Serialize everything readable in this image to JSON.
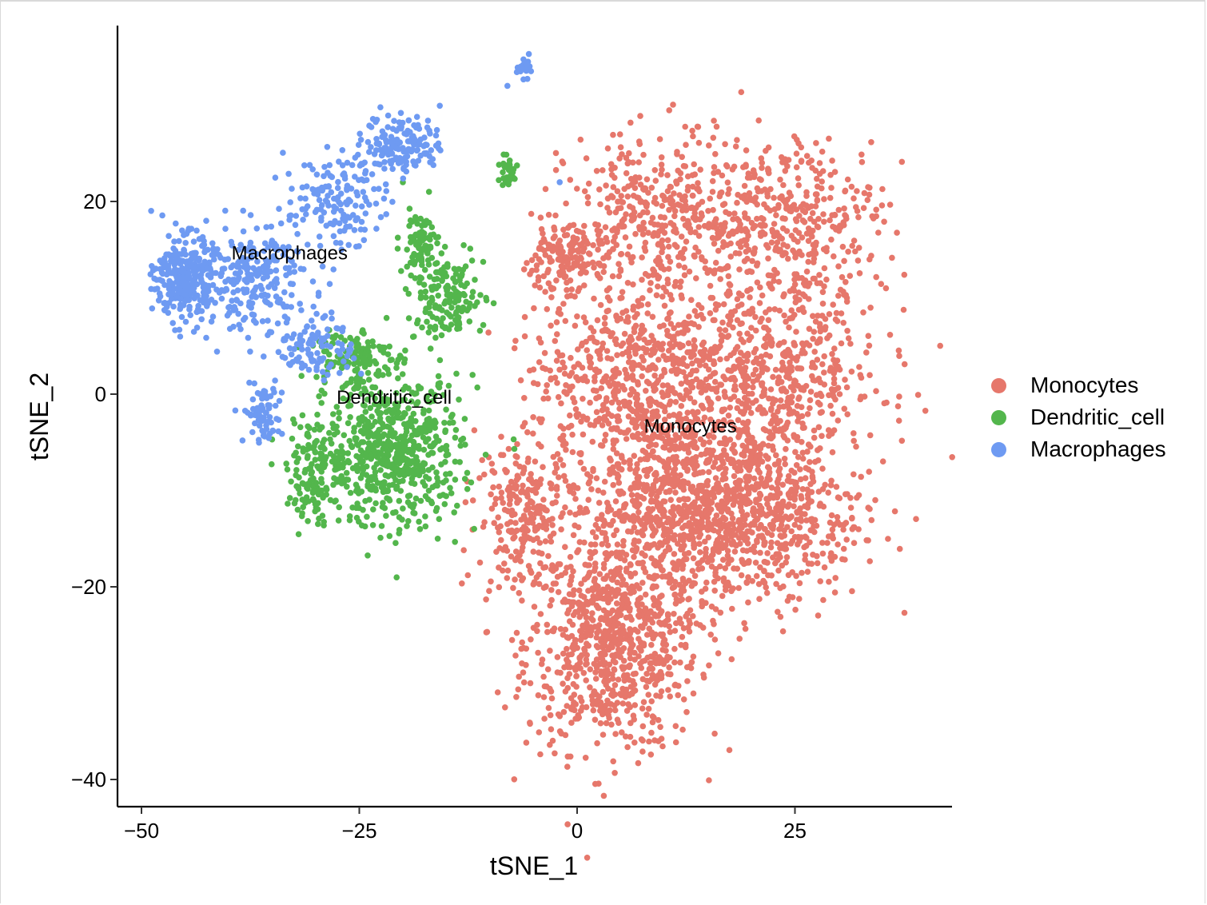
{
  "chart_data": {
    "type": "scatter",
    "title": "",
    "xlabel": "tSNE_1",
    "ylabel": "tSNE_2",
    "xlim": [
      -53,
      43
    ],
    "ylim": [
      -43,
      38
    ],
    "x_ticks": [
      -50,
      -25,
      0,
      25
    ],
    "x_tick_labels": [
      "−50",
      "−25",
      "0",
      "25"
    ],
    "y_ticks": [
      20,
      0,
      -20,
      -40
    ],
    "y_tick_labels": [
      "20",
      "0",
      "−20",
      "−40"
    ],
    "grid": false,
    "legend_position": "right",
    "series": [
      {
        "name": "Monocytes",
        "color": "#E6776B",
        "cluster_label": "Monocytes",
        "label_position": [
          13,
          -4
        ],
        "approx_point_count": 4400,
        "regions": [
          {
            "center": [
              4,
              -26
            ],
            "spread": [
              9,
              10
            ],
            "weight": 0.18
          },
          {
            "center": [
              12,
              -12
            ],
            "spread": [
              12,
              9
            ],
            "weight": 0.2
          },
          {
            "center": [
              22,
              -12
            ],
            "spread": [
              10,
              9
            ],
            "weight": 0.1
          },
          {
            "center": [
              6,
              2
            ],
            "spread": [
              10,
              9
            ],
            "weight": 0.13
          },
          {
            "center": [
              22,
              2
            ],
            "spread": [
              12,
              9
            ],
            "weight": 0.13
          },
          {
            "center": [
              10,
              18
            ],
            "spread": [
              10,
              8
            ],
            "weight": 0.1
          },
          {
            "center": [
              25,
              18
            ],
            "spread": [
              9,
              8
            ],
            "weight": 0.08
          },
          {
            "center": [
              -2,
              14
            ],
            "spread": [
              4,
              3
            ],
            "weight": 0.03
          },
          {
            "center": [
              -6,
              -12
            ],
            "spread": [
              5,
              7
            ],
            "weight": 0.05
          }
        ],
        "outliers": [
          [
            -6,
            -3
          ],
          [
            -9,
            -18
          ],
          [
            -6,
            8
          ],
          [
            5,
            20
          ],
          [
            -6,
            6
          ]
        ]
      },
      {
        "name": "Dendritic_cell",
        "color": "#53B64C",
        "cluster_label": "Dendritic_cell",
        "label_position": [
          -21,
          -1
        ],
        "approx_point_count": 1150,
        "regions": [
          {
            "center": [
              -21,
              -6
            ],
            "spread": [
              7,
              7
            ],
            "weight": 0.55
          },
          {
            "center": [
              -30,
              -8
            ],
            "spread": [
              3,
              5
            ],
            "weight": 0.12
          },
          {
            "center": [
              -15,
              10
            ],
            "spread": [
              4,
              4
            ],
            "weight": 0.14
          },
          {
            "center": [
              -18,
              16
            ],
            "spread": [
              2,
              2.5
            ],
            "weight": 0.06
          },
          {
            "center": [
              -26,
              4
            ],
            "spread": [
              4,
              3
            ],
            "weight": 0.1
          },
          {
            "center": [
              -8,
              23
            ],
            "spread": [
              1.2,
              1.5
            ],
            "weight": 0.03
          }
        ],
        "outliers": [
          [
            -16,
            -15
          ],
          [
            -14,
            -7
          ],
          [
            -12,
            2
          ],
          [
            -20,
            22
          ],
          [
            -17,
            21
          ]
        ]
      },
      {
        "name": "Macrophages",
        "color": "#6E9AF2",
        "cluster_label": "Macrophages",
        "label_position": [
          -33,
          14
        ],
        "approx_point_count": 1050,
        "regions": [
          {
            "center": [
              -45,
              12
            ],
            "spread": [
              3,
              4
            ],
            "weight": 0.28
          },
          {
            "center": [
              -37,
              12
            ],
            "spread": [
              6,
              5
            ],
            "weight": 0.22
          },
          {
            "center": [
              -28,
              20
            ],
            "spread": [
              5,
              4
            ],
            "weight": 0.14
          },
          {
            "center": [
              -20,
              26
            ],
            "spread": [
              4,
              3
            ],
            "weight": 0.14
          },
          {
            "center": [
              -30,
              5
            ],
            "spread": [
              4,
              3
            ],
            "weight": 0.1
          },
          {
            "center": [
              -36,
              -2
            ],
            "spread": [
              2,
              3
            ],
            "weight": 0.07
          },
          {
            "center": [
              -6,
              34
            ],
            "spread": [
              1,
              1
            ],
            "weight": 0.02
          }
        ],
        "outliers": [
          [
            -2,
            22
          ],
          [
            -8,
            32
          ]
        ]
      }
    ]
  }
}
